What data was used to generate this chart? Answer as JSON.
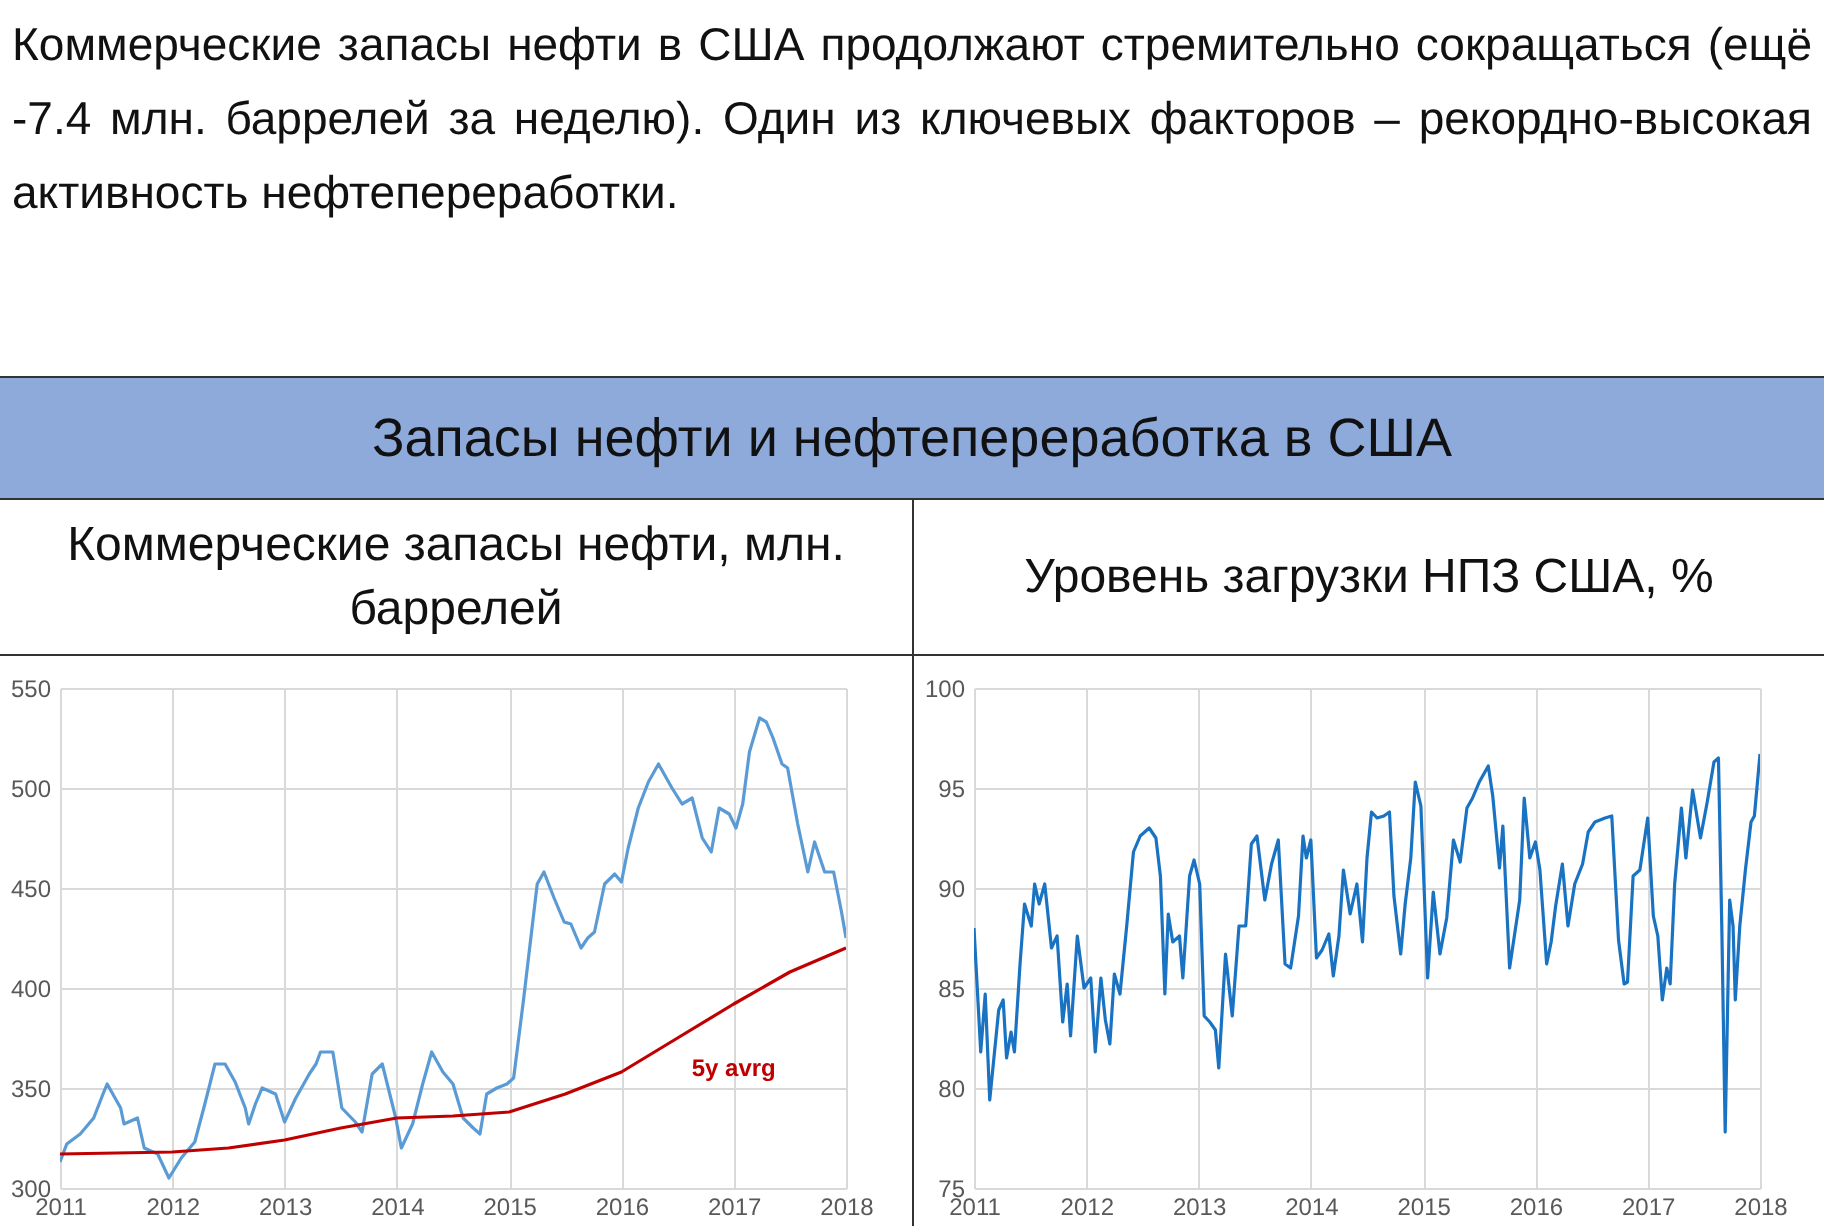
{
  "chart_data": [
    {
      "type": "line",
      "title": "Коммерческие запасы нефти, млн. баррелей",
      "annotations": [
        "Коммерческие запасы нефти в США продолжают стремительно сокращаться (ещё -7.4 млн. баррелей за неделю). Один из ключевых факторов – рекордно-высокая активность нефтепереработки.",
        "Запасы нефти и нефтепереработка в США"
      ],
      "xlim": [
        2011,
        2018
      ],
      "xticks": [
        2011,
        2012,
        2013,
        2014,
        2015,
        2016,
        2017,
        2018
      ],
      "ylim": [
        300,
        550
      ],
      "yticks": [
        300,
        350,
        400,
        450,
        500,
        550
      ],
      "grid": true,
      "legend": false,
      "series": [
        {
          "color": "#5b9bd5",
          "x": [
            2011.0,
            2011.06,
            2011.18,
            2011.3,
            2011.39,
            2011.42,
            2011.54,
            2011.57,
            2011.69,
            2011.75,
            2011.87,
            2011.97,
            2012.08,
            2012.2,
            2012.29,
            2012.38,
            2012.47,
            2012.56,
            2012.65,
            2012.68,
            2012.74,
            2012.8,
            2012.92,
            2013.0,
            2013.1,
            2013.22,
            2013.28,
            2013.32,
            2013.43,
            2013.51,
            2013.63,
            2013.69,
            2013.78,
            2013.87,
            2013.99,
            2014.04,
            2014.14,
            2014.23,
            2014.31,
            2014.41,
            2014.5,
            2014.59,
            2014.68,
            2014.74,
            2014.8,
            2014.89,
            2014.98,
            2015.04,
            2015.13,
            2015.25,
            2015.31,
            2015.4,
            2015.49,
            2015.55,
            2015.64,
            2015.7,
            2015.76,
            2015.85,
            2015.94,
            2016.0,
            2016.06,
            2016.15,
            2016.24,
            2016.33,
            2016.45,
            2016.54,
            2016.63,
            2016.72,
            2016.8,
            2016.87,
            2016.96,
            2017.02,
            2017.08,
            2017.14,
            2017.23,
            2017.29,
            2017.35,
            2017.43,
            2017.48,
            2017.57,
            2017.66,
            2017.72,
            2017.81,
            2017.89,
            2017.96,
            2018.0
          ],
          "values": [
            313,
            322,
            327,
            335,
            348,
            352,
            340,
            332,
            335,
            320,
            317,
            305,
            315,
            323,
            342,
            362,
            362,
            353,
            340,
            332,
            342,
            350,
            347,
            333,
            345,
            357,
            362,
            368,
            368,
            340,
            333,
            328,
            357,
            362,
            335,
            320,
            332,
            352,
            368,
            358,
            352,
            335,
            330,
            327,
            347,
            350,
            352,
            355,
            395,
            452,
            458,
            445,
            433,
            432,
            420,
            425,
            428,
            452,
            457,
            453,
            470,
            490,
            503,
            512,
            500,
            492,
            495,
            475,
            468,
            490,
            487,
            480,
            492,
            518,
            535,
            533,
            525,
            512,
            510,
            482,
            458,
            473,
            458,
            458,
            438,
            425
          ]
        },
        {
          "name": "5y avrg",
          "color": "#c00000",
          "x": [
            2011,
            2012,
            2012.5,
            2013,
            2013.5,
            2014,
            2014.5,
            2015,
            2015.5,
            2016,
            2016.5,
            2017,
            2017.5,
            2018
          ],
          "values": [
            317,
            318,
            320,
            324,
            330,
            335,
            336,
            338,
            347,
            358,
            375,
            392,
            408,
            420
          ]
        }
      ]
    },
    {
      "type": "line",
      "title": "Уровень загрузки НПЗ США, %",
      "xlim": [
        2011,
        2018
      ],
      "xticks": [
        2011,
        2012,
        2013,
        2014,
        2015,
        2016,
        2017,
        2018
      ],
      "ylim": [
        75,
        100
      ],
      "yticks": [
        75,
        80,
        85,
        90,
        95,
        100
      ],
      "grid": true,
      "legend": false,
      "series": [
        {
          "color": "#1a73c2",
          "x": [
            2011.0,
            2011.06,
            2011.1,
            2011.14,
            2011.22,
            2011.26,
            2011.29,
            2011.33,
            2011.36,
            2011.41,
            2011.45,
            2011.51,
            2011.54,
            2011.58,
            2011.63,
            2011.69,
            2011.74,
            2011.79,
            2011.83,
            2011.86,
            2011.92,
            2011.98,
            2012.04,
            2012.08,
            2012.13,
            2012.17,
            2012.21,
            2012.25,
            2012.3,
            2012.36,
            2012.42,
            2012.48,
            2012.56,
            2012.62,
            2012.66,
            2012.7,
            2012.73,
            2012.77,
            2012.83,
            2012.86,
            2012.92,
            2012.96,
            2013.01,
            2013.05,
            2013.1,
            2013.15,
            2013.18,
            2013.24,
            2013.3,
            2013.36,
            2013.42,
            2013.47,
            2013.52,
            2013.59,
            2013.65,
            2013.71,
            2013.77,
            2013.82,
            2013.89,
            2013.93,
            2013.96,
            2014.0,
            2014.05,
            2014.1,
            2014.16,
            2014.2,
            2014.25,
            2014.29,
            2014.35,
            2014.41,
            2014.46,
            2014.5,
            2014.54,
            2014.59,
            2014.65,
            2014.7,
            2014.74,
            2014.8,
            2014.84,
            2014.89,
            2014.93,
            2014.98,
            2015.04,
            2015.09,
            2015.15,
            2015.21,
            2015.27,
            2015.33,
            2015.39,
            2015.44,
            2015.5,
            2015.58,
            2015.62,
            2015.68,
            2015.71,
            2015.77,
            2015.86,
            2015.9,
            2015.95,
            2016.0,
            2016.04,
            2016.1,
            2016.14,
            2016.18,
            2016.24,
            2016.29,
            2016.35,
            2016.42,
            2016.47,
            2016.53,
            2016.62,
            2016.68,
            2016.74,
            2016.79,
            2016.82,
            2016.87,
            2016.93,
            2017.0,
            2017.05,
            2017.09,
            2017.13,
            2017.17,
            2017.2,
            2017.24,
            2017.3,
            2017.34,
            2017.4,
            2017.47,
            2017.53,
            2017.59,
            2017.63,
            2017.66,
            2017.69,
            2017.73,
            2017.76,
            2017.78,
            2017.82,
            2017.87,
            2017.92,
            2017.95,
            2018.0
          ],
          "values": [
            88.0,
            81.8,
            84.7,
            79.4,
            83.9,
            84.4,
            81.5,
            82.8,
            81.8,
            86.2,
            89.2,
            88.1,
            90.2,
            89.2,
            90.2,
            87.0,
            87.6,
            83.3,
            85.2,
            82.6,
            87.6,
            85.0,
            85.5,
            81.8,
            85.5,
            83.4,
            82.2,
            85.7,
            84.7,
            88.1,
            91.8,
            92.6,
            93.0,
            92.5,
            90.6,
            84.7,
            88.7,
            87.3,
            87.6,
            85.5,
            90.6,
            91.4,
            90.2,
            83.6,
            83.3,
            82.9,
            81.0,
            86.7,
            83.6,
            88.1,
            88.1,
            92.2,
            92.6,
            89.4,
            91.2,
            92.4,
            86.2,
            86.0,
            88.6,
            92.6,
            91.5,
            92.4,
            86.5,
            86.9,
            87.7,
            85.6,
            87.6,
            90.9,
            88.7,
            90.2,
            87.3,
            91.5,
            93.8,
            93.5,
            93.6,
            93.8,
            89.6,
            86.7,
            89.2,
            91.5,
            95.3,
            94.1,
            85.5,
            89.8,
            86.7,
            88.5,
            92.4,
            91.3,
            94.0,
            94.5,
            95.3,
            96.1,
            94.6,
            91.0,
            93.1,
            86.0,
            89.4,
            94.5,
            91.5,
            92.3,
            90.9,
            86.2,
            87.3,
            89.1,
            91.2,
            88.1,
            90.2,
            91.2,
            92.8,
            93.3,
            93.5,
            93.6,
            87.4,
            85.2,
            85.3,
            90.6,
            90.9,
            93.5,
            88.6,
            87.6,
            84.4,
            86.0,
            85.2,
            90.2,
            94.0,
            91.5,
            94.9,
            92.5,
            94.3,
            96.3,
            96.5,
            88.0,
            77.8,
            89.4,
            88.1,
            84.4,
            88.1,
            90.9,
            93.3,
            93.6,
            96.7
          ]
        }
      ]
    }
  ]
}
